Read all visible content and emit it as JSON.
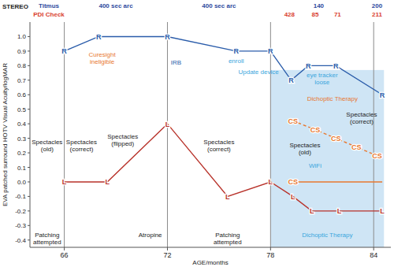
{
  "chart_data": {
    "type": "line",
    "header": {
      "title": "STEREO",
      "rows": [
        {
          "label": "Titmus",
          "color": "#2e4a9e",
          "entries": [
            {
              "x": 69,
              "value": 400,
              "label": "400 sec arc"
            },
            {
              "x": 75,
              "value": 400,
              "label": "400 sec arc"
            },
            {
              "x": 80.8,
              "value": 140
            },
            {
              "x": 84.2,
              "value": 200
            }
          ]
        },
        {
          "label": "PDI Check",
          "color": "#d9402e",
          "entries": [
            {
              "x": 79.1,
              "value": 428
            },
            {
              "x": 80.6,
              "value": 85
            },
            {
              "x": 81.9,
              "value": 71
            },
            {
              "x": 84.2,
              "value": 211
            }
          ]
        }
      ]
    },
    "y_label": "EVA patched surround HOTV Visual Acuity/logMAR",
    "x_label": "AGE/months",
    "xlim": [
      64,
      85
    ],
    "xticks": [
      66,
      72,
      78,
      84
    ],
    "ylim": [
      -0.45,
      1.1
    ],
    "yticks": [
      -0.4,
      -0.3,
      -0.2,
      -0.1,
      {
        "value": 0,
        "label": "0.0"
      },
      0.1,
      0.2,
      0.3,
      0.4,
      0.5,
      0.6,
      0.7,
      0.8,
      0.9,
      {
        "value": 1,
        "label": "1.0"
      }
    ],
    "grid": "x",
    "series": [
      {
        "name": "R",
        "color": "#2a5caa",
        "line_style": "solid",
        "marker": "name",
        "x": [
          66,
          68,
          72,
          76,
          78,
          79.2,
          80.2,
          81.8,
          84.5
        ],
        "values": [
          0.9,
          1.0,
          1.0,
          0.9,
          0.9,
          0.7,
          0.8,
          0.8,
          0.6
        ]
      },
      {
        "name": "L",
        "color": "#b8322a",
        "line_style": "solid",
        "marker": "name",
        "x": [
          66,
          68.5,
          72,
          75.5,
          78,
          79.3,
          80.4,
          82,
          84.5
        ],
        "values": [
          0.0,
          0.0,
          0.4,
          -0.1,
          0.0,
          -0.1,
          -0.2,
          -0.2,
          -0.2
        ]
      },
      {
        "name": "CS",
        "color": "#e8772e",
        "line_style": "dashed",
        "marker": "name",
        "x": [
          79.3,
          80.6,
          81.8,
          83,
          84.2
        ],
        "values": [
          0.42,
          0.36,
          0.3,
          0.24,
          0.18
        ]
      },
      {
        "name": "CS",
        "color": "#e8772e",
        "line_style": "solid",
        "marker": "first",
        "x": [
          79.3,
          84.5
        ],
        "values": [
          0.0,
          0.0
        ]
      }
    ],
    "regions": [
      {
        "x": [
          78,
          84.6
        ],
        "y": [
          -0.45,
          0.77
        ],
        "color": "#cfe5f5"
      }
    ],
    "annotations": [
      {
        "text": "Curesight\nineligible",
        "x": 68.2,
        "y": 0.86,
        "color": "#e8772e"
      },
      {
        "text": "IRB",
        "x": 72.5,
        "y": 0.81,
        "color": "#2a5caa"
      },
      {
        "text": "enroll",
        "x": 76,
        "y": 0.82,
        "color": "#3aa6dd"
      },
      {
        "text": "Update device",
        "x": 77.3,
        "y": 0.74,
        "color": "#3aa6dd"
      },
      {
        "text": "WiFi",
        "x": 80.6,
        "y": 0.1,
        "color": "#3aa6dd"
      },
      {
        "text": "eye tracker\nloose",
        "x": 81,
        "y": 0.72,
        "color": "#3aa6dd"
      },
      {
        "text": "Dichoptic Therapy",
        "x": 81.6,
        "y": 0.56,
        "color": "#e8772e"
      },
      {
        "text": "Spectacles\n(old)",
        "x": 65,
        "y": 0.26,
        "color": "#222222"
      },
      {
        "text": "Spectacles\n(correct)",
        "x": 67,
        "y": 0.26,
        "color": "#222222"
      },
      {
        "text": "Spectacles\n(flipped)",
        "x": 69.4,
        "y": 0.3,
        "color": "#222222"
      },
      {
        "text": "Spectacles\n(correct)",
        "x": 75,
        "y": 0.26,
        "color": "#222222"
      },
      {
        "text": "Spectacles\n(old)",
        "x": 80,
        "y": 0.24,
        "color": "#222222"
      },
      {
        "text": "Spectacles\n(correct)",
        "x": 83.3,
        "y": 0.45,
        "color": "#222222"
      },
      {
        "text": "Patching\nattempted",
        "x": 65,
        "y": -0.38,
        "color": "#222222"
      },
      {
        "text": "Atropine",
        "x": 71,
        "y": -0.38,
        "color": "#222222"
      },
      {
        "text": "Patching\nattempted",
        "x": 75.5,
        "y": -0.38,
        "color": "#222222"
      },
      {
        "text": "Dichoptic Therapy",
        "x": 81.3,
        "y": -0.38,
        "color": "#3aa6dd"
      }
    ]
  }
}
